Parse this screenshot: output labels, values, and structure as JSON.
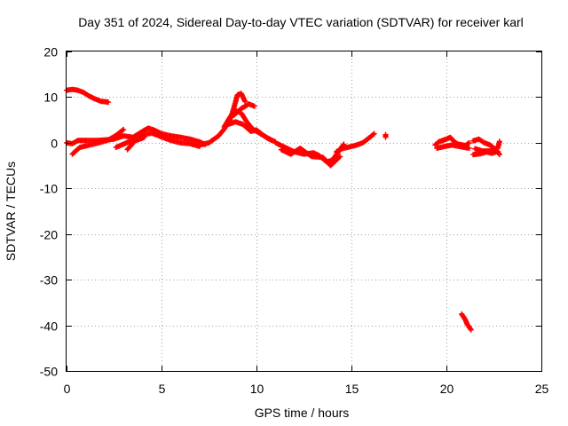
{
  "chart_data": {
    "type": "scatter",
    "title": "Day 351 of 2024, Sidereal Day-to-day VTEC variation (SDTVAR) for receiver karl",
    "xlabel": "GPS time / hours",
    "ylabel": "SDTVAR / TECUs",
    "xlim": [
      0,
      25
    ],
    "ylim": [
      -50,
      20
    ],
    "xticks": [
      "0",
      "5",
      "10",
      "15",
      "20",
      "25"
    ],
    "yticks": [
      "20",
      "10",
      "0",
      "-10",
      "-20",
      "-30",
      "-40",
      "-50"
    ],
    "xtick_values": [
      0,
      5,
      10,
      15,
      20,
      25
    ],
    "ytick_values": [
      20,
      10,
      0,
      -10,
      -20,
      -30,
      -40,
      -50
    ],
    "grid": true,
    "marker": "plus",
    "series": [
      {
        "name": "SDTVAR",
        "color": "#ff0000",
        "segments": [
          [
            [
              0.0,
              11.5
            ],
            [
              0.3,
              11.7
            ],
            [
              0.6,
              11.5
            ],
            [
              0.9,
              11.0
            ],
            [
              1.2,
              10.2
            ],
            [
              1.5,
              9.6
            ],
            [
              1.8,
              9.1
            ],
            [
              2.2,
              8.9
            ]
          ],
          [
            [
              0.0,
              0.0
            ],
            [
              0.3,
              -0.2
            ],
            [
              0.6,
              0.5
            ],
            [
              1.0,
              0.5
            ],
            [
              1.5,
              0.5
            ],
            [
              2.0,
              0.6
            ],
            [
              2.5,
              0.8
            ],
            [
              3.0,
              1.5
            ],
            [
              3.5,
              1.2
            ],
            [
              4.0,
              2.5
            ],
            [
              4.3,
              3.2
            ],
            [
              4.6,
              2.8
            ],
            [
              5.0,
              2.0
            ],
            [
              5.5,
              1.5
            ],
            [
              6.0,
              1.2
            ],
            [
              6.5,
              0.8
            ],
            [
              7.0,
              0.2
            ],
            [
              7.3,
              -0.4
            ]
          ],
          [
            [
              0.3,
              -2.5
            ],
            [
              0.7,
              -1.0
            ],
            [
              1.2,
              -0.5
            ],
            [
              1.7,
              0.0
            ],
            [
              2.2,
              0.6
            ],
            [
              2.6,
              1.6
            ],
            [
              3.0,
              2.9
            ]
          ],
          [
            [
              2.6,
              -1.0
            ],
            [
              3.0,
              -0.3
            ],
            [
              3.5,
              0.6
            ],
            [
              4.0,
              1.8
            ],
            [
              4.5,
              2.1
            ],
            [
              5.0,
              1.3
            ],
            [
              5.5,
              0.5
            ],
            [
              6.0,
              0.0
            ],
            [
              6.5,
              -0.2
            ],
            [
              7.0,
              -0.8
            ]
          ],
          [
            [
              3.2,
              -1.5
            ],
            [
              3.6,
              0.4
            ],
            [
              4.1,
              1.2
            ]
          ],
          [
            [
              7.0,
              -0.5
            ],
            [
              7.5,
              0.0
            ],
            [
              8.0,
              1.5
            ],
            [
              8.3,
              3.0
            ],
            [
              8.6,
              5.0
            ],
            [
              8.8,
              7.5
            ],
            [
              9.0,
              10.5
            ],
            [
              9.2,
              10.8
            ],
            [
              9.4,
              9.0
            ]
          ],
          [
            [
              8.3,
              3.5
            ],
            [
              8.6,
              5.6
            ],
            [
              8.9,
              7.0
            ],
            [
              9.2,
              6.5
            ],
            [
              9.5,
              4.5
            ],
            [
              9.8,
              3.0
            ],
            [
              10.2,
              2.0
            ],
            [
              10.6,
              1.0
            ],
            [
              11.0,
              0.2
            ]
          ],
          [
            [
              8.8,
              6.0
            ],
            [
              9.2,
              7.5
            ],
            [
              9.6,
              8.5
            ],
            [
              9.9,
              8.0
            ]
          ],
          [
            [
              8.5,
              4.0
            ],
            [
              8.9,
              4.6
            ],
            [
              9.3,
              4.0
            ],
            [
              9.7,
              2.5
            ],
            [
              10.0,
              2.8
            ],
            [
              10.4,
              1.5
            ],
            [
              10.8,
              0.5
            ]
          ],
          [
            [
              11.0,
              0.0
            ],
            [
              11.5,
              -1.0
            ],
            [
              12.0,
              -2.0
            ],
            [
              12.5,
              -2.5
            ],
            [
              13.0,
              -2.2
            ],
            [
              13.3,
              -2.8
            ],
            [
              13.7,
              -4.2
            ],
            [
              14.0,
              -3.8
            ],
            [
              14.3,
              -2.0
            ],
            [
              14.6,
              -0.3
            ]
          ],
          [
            [
              11.3,
              -1.5
            ],
            [
              11.8,
              -2.5
            ],
            [
              12.3,
              -1.2
            ],
            [
              12.9,
              -3.0
            ],
            [
              13.5,
              -3.2
            ],
            [
              13.9,
              -5.0
            ],
            [
              14.4,
              -3.0
            ]
          ],
          [
            [
              14.2,
              -2.0
            ],
            [
              14.5,
              -1.3
            ],
            [
              14.8,
              -1.0
            ],
            [
              15.2,
              -0.6
            ],
            [
              15.6,
              0.0
            ],
            [
              16.0,
              1.3
            ],
            [
              16.2,
              2.0
            ]
          ],
          [
            [
              16.8,
              1.8
            ],
            [
              16.8,
              1.2
            ]
          ],
          [
            [
              19.4,
              -0.5
            ],
            [
              19.6,
              0.2
            ],
            [
              19.8,
              0.5
            ],
            [
              20.0,
              0.8
            ],
            [
              20.2,
              1.2
            ],
            [
              20.4,
              0.3
            ],
            [
              20.6,
              -0.3
            ],
            [
              21.0,
              -0.6
            ],
            [
              21.2,
              0.0
            ]
          ],
          [
            [
              19.5,
              -1.2
            ],
            [
              19.9,
              -0.8
            ],
            [
              20.3,
              -0.5
            ],
            [
              20.8,
              -0.9
            ],
            [
              21.2,
              -1.2
            ]
          ],
          [
            [
              20.8,
              -37.5
            ],
            [
              21.0,
              -38.8
            ],
            [
              21.1,
              -39.8
            ],
            [
              21.3,
              -41.0
            ]
          ],
          [
            [
              21.4,
              0.4
            ],
            [
              21.7,
              0.8
            ],
            [
              22.0,
              0.0
            ],
            [
              22.3,
              -0.5
            ],
            [
              22.6,
              -1.5
            ],
            [
              22.8,
              -2.6
            ]
          ],
          [
            [
              21.5,
              -1.3
            ],
            [
              21.9,
              -1.8
            ],
            [
              22.3,
              -1.8
            ],
            [
              22.7,
              -1.2
            ],
            [
              22.8,
              0.3
            ]
          ],
          [
            [
              21.4,
              -2.6
            ],
            [
              21.8,
              -2.4
            ],
            [
              22.1,
              -2.0
            ],
            [
              22.4,
              -2.3
            ],
            [
              22.7,
              -1.9
            ]
          ]
        ]
      }
    ]
  }
}
